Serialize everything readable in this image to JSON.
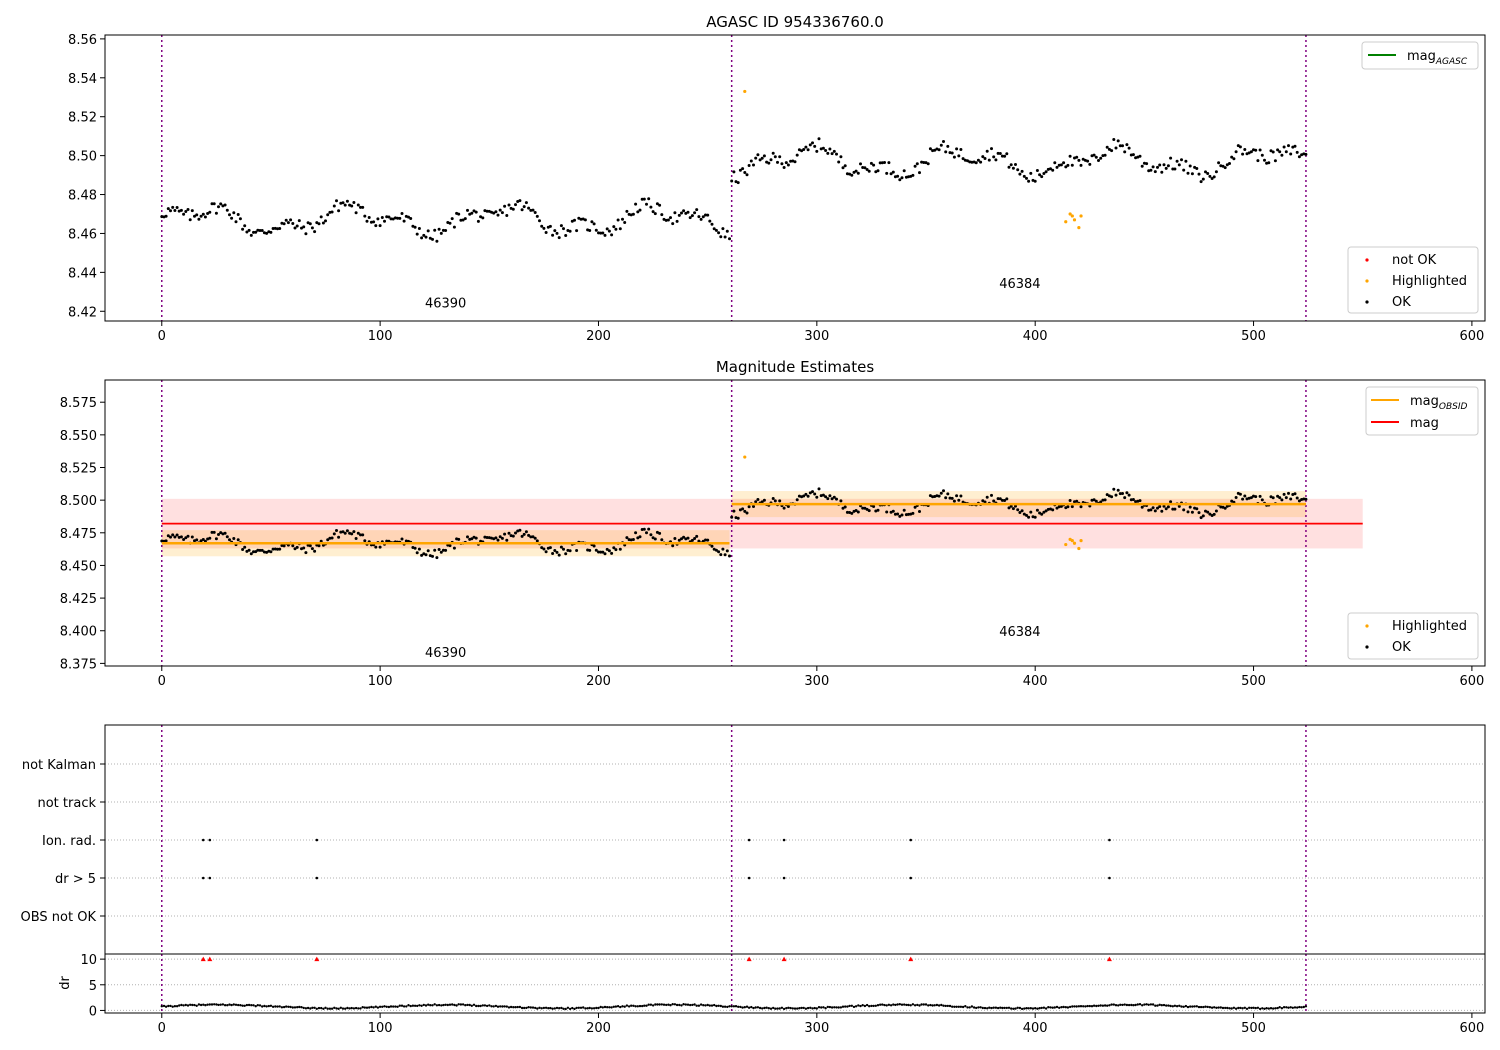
{
  "chart_data": [
    {
      "type": "scatter",
      "title": "AGASC ID 954336760.0",
      "xlim": [
        -26,
        606
      ],
      "ylim": [
        8.415,
        8.562
      ],
      "x_ticks": [
        0,
        100,
        200,
        300,
        400,
        500,
        600
      ],
      "y_ticks": [
        "8.42",
        "8.44",
        "8.46",
        "8.48",
        "8.50",
        "8.52",
        "8.54",
        "8.56"
      ],
      "obsid_boundaries": [
        0,
        261,
        524
      ],
      "obsid_labels": [
        {
          "text": "46390",
          "x": 130,
          "y": 8.422
        },
        {
          "text": "46384",
          "x": 393,
          "y": 8.432
        }
      ],
      "legend_lines": [
        {
          "label": "mag",
          "sub": "AGASC",
          "color": "#008000"
        }
      ],
      "legend_points": [
        {
          "label": "not OK",
          "color": "#ff0000"
        },
        {
          "label": "Highlighted",
          "color": "#ffa500"
        },
        {
          "label": "OK",
          "color": "#000000"
        }
      ],
      "series": [
        {
          "name": "OK",
          "color": "#000000",
          "segments": [
            {
              "x_start": 0,
              "x_end": 260,
              "step": 1,
              "mean": 8.467,
              "amplitude": 0.011,
              "slope": 0
            },
            {
              "x_start": 261,
              "x_end": 524,
              "step": 1,
              "mean": 8.497,
              "amplitude": 0.011,
              "slope": 0
            }
          ]
        },
        {
          "name": "Highlighted",
          "color": "#ffa500",
          "points": [
            [
              267,
              8.533
            ],
            [
              414,
              8.466
            ],
            [
              416,
              8.47
            ],
            [
              417,
              8.469
            ],
            [
              418,
              8.467
            ],
            [
              420,
              8.463
            ],
            [
              421,
              8.469
            ]
          ]
        }
      ]
    },
    {
      "type": "scatter",
      "title": "Magnitude Estimates",
      "xlim": [
        -26,
        606
      ],
      "ylim": [
        8.373,
        8.592
      ],
      "x_ticks": [
        0,
        100,
        200,
        300,
        400,
        500,
        600
      ],
      "y_ticks": [
        "8.375",
        "8.400",
        "8.425",
        "8.450",
        "8.475",
        "8.500",
        "8.525",
        "8.550",
        "8.575"
      ],
      "obsid_boundaries": [
        0,
        261,
        524
      ],
      "obsid_labels": [
        {
          "text": "46390",
          "x": 130,
          "y": 8.38
        },
        {
          "text": "46384",
          "x": 393,
          "y": 8.396
        }
      ],
      "legend_lines": [
        {
          "label": "mag",
          "sub": "OBSID",
          "color": "#ffa500"
        },
        {
          "label": "mag",
          "sub": "",
          "color": "#ff0000"
        }
      ],
      "legend_points": [
        {
          "label": "Highlighted",
          "color": "#ffa500"
        },
        {
          "label": "OK",
          "color": "#000000"
        }
      ],
      "mag_overall": {
        "value": 8.482,
        "band": [
          8.463,
          8.501
        ],
        "x_range": [
          0,
          550
        ]
      },
      "mag_obsid": [
        {
          "x_range": [
            0,
            260
          ],
          "value": 8.467,
          "band": [
            8.457,
            8.477
          ]
        },
        {
          "x_range": [
            261,
            524
          ],
          "value": 8.497,
          "band": [
            8.487,
            8.507
          ]
        }
      ],
      "series": [
        {
          "name": "OK",
          "color": "#000000",
          "segments": [
            {
              "x_start": 0,
              "x_end": 260,
              "step": 1,
              "mean": 8.467,
              "amplitude": 0.011,
              "slope": 0
            },
            {
              "x_start": 261,
              "x_end": 524,
              "step": 1,
              "mean": 8.497,
              "amplitude": 0.011,
              "slope": 0
            }
          ]
        },
        {
          "name": "Highlighted",
          "color": "#ffa500",
          "points": [
            [
              267,
              8.533
            ],
            [
              414,
              8.466
            ],
            [
              416,
              8.47
            ],
            [
              417,
              8.469
            ],
            [
              418,
              8.467
            ],
            [
              420,
              8.463
            ],
            [
              421,
              8.469
            ]
          ]
        }
      ]
    },
    {
      "type": "scatter",
      "title": "",
      "xlim": [
        -26,
        606
      ],
      "x_ticks": [
        0,
        100,
        200,
        300,
        400,
        500,
        600
      ],
      "flag_categories": [
        "not Kalman",
        "not track",
        "Ion. rad.",
        "dr > 5",
        "OBS not OK"
      ],
      "flags": {
        "Ion. rad.": [
          19,
          22,
          71,
          269,
          285,
          343,
          434
        ],
        "dr > 5": [
          19,
          22,
          71,
          269,
          285,
          343,
          434
        ]
      },
      "obsid_boundaries": [
        0,
        261,
        524
      ]
    },
    {
      "type": "scatter",
      "title": "",
      "ylabel": "dr",
      "xlim": [
        -26,
        606
      ],
      "ylim": [
        -0.5,
        11
      ],
      "x_ticks": [
        0,
        100,
        200,
        300,
        400,
        500,
        600
      ],
      "y_ticks": [
        0,
        5,
        10
      ],
      "dr_clipped_marks": [
        19,
        22,
        71,
        269,
        285,
        343,
        434
      ],
      "dr_series": {
        "x_start": 0,
        "x_end": 524,
        "step": 1,
        "mean": 0.75,
        "amplitude": 0.5
      },
      "obsid_boundaries": [
        0,
        261,
        524
      ]
    }
  ]
}
